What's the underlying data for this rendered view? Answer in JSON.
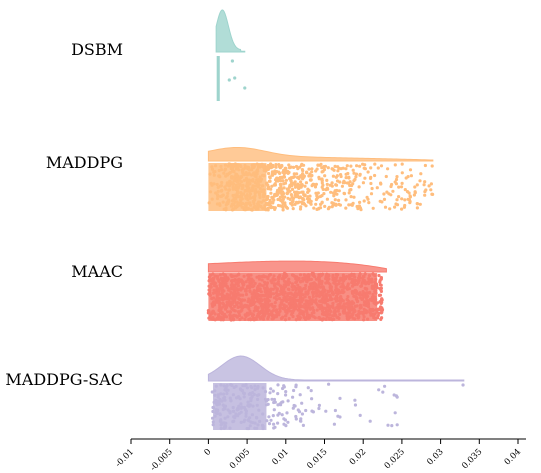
{
  "chart_data": {
    "type": "raincloud",
    "title": "",
    "xlabel": "",
    "ylabel": "",
    "xlim": [
      -0.01,
      0.04
    ],
    "x_ticks": [
      "-0.01",
      "-0.005",
      "0",
      "0.005",
      "0.01",
      "0.015",
      "0.02",
      "0.025",
      "0.03",
      "0.035",
      "0.04"
    ],
    "x_tick_values": [
      -0.01,
      -0.005,
      0,
      0.005,
      0.01,
      0.015,
      0.02,
      0.025,
      0.03,
      0.035,
      0.04
    ],
    "grid": false,
    "series": [
      {
        "name": "DSBM",
        "color": "#9ed4cd",
        "approx_min": 0.001,
        "approx_max": 0.0047,
        "box_q1": 0.0012,
        "box_q3": 0.0016,
        "density_peak_at": 0.0018,
        "example_outliers": [
          0.0031,
          0.0027,
          0.0034,
          0.0047
        ]
      },
      {
        "name": "MADDPG",
        "color": "#ffbd7d",
        "approx_min": 0.0,
        "approx_max": 0.029,
        "box_q1": 0.0,
        "box_q3": 0.0075,
        "density_peak_at": 0.004,
        "example_outliers": []
      },
      {
        "name": "MAAC",
        "color": "#f77b6f",
        "approx_min": 0.0,
        "approx_max": 0.023,
        "box_q1": 0.0,
        "box_q3": 0.0218,
        "density_peak_at": 0.012,
        "example_outliers": []
      },
      {
        "name": "MADDPG-SAC",
        "color": "#bcb5dc",
        "approx_min": 0.0,
        "approx_max": 0.033,
        "box_q1": 0.0006,
        "box_q3": 0.0075,
        "density_peak_at": 0.0042,
        "example_outliers": [
          0.0329,
          0.024,
          0.019,
          0.017
        ]
      }
    ]
  }
}
